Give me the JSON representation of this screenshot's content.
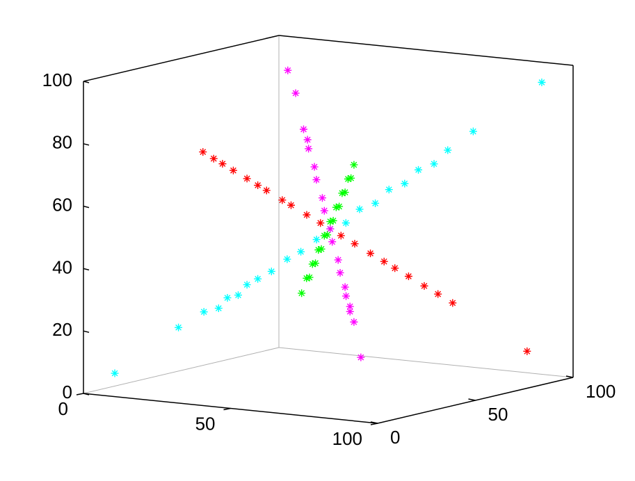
{
  "chart_data": {
    "type": "scatter3d",
    "xlim": [
      0,
      100
    ],
    "ylim": [
      0,
      100
    ],
    "zlim": [
      0,
      100
    ],
    "xticks": [
      0,
      50,
      100
    ],
    "yticks": [
      0,
      50,
      100
    ],
    "zticks": [
      0,
      20,
      40,
      60,
      80,
      100
    ],
    "series": [
      {
        "color": "#ff0000",
        "x": [
          24,
          27,
          28,
          31,
          33,
          36,
          37,
          41,
          42,
          46,
          48,
          53,
          55,
          59,
          61,
          64,
          66,
          70,
          72,
          75,
          91
        ],
        "y": [
          25,
          26,
          29,
          30,
          34,
          35,
          38,
          40,
          43,
          45,
          49,
          52,
          56,
          58,
          62,
          63,
          67,
          69,
          73,
          76,
          90
        ],
        "z": [
          76,
          74,
          72,
          70,
          67,
          65,
          63,
          60,
          58,
          55,
          52,
          48,
          45,
          42,
          39,
          37,
          34,
          31,
          28,
          25,
          9
        ]
      },
      {
        "color": "#00ffff",
        "x": [
          6,
          19,
          25,
          28,
          29,
          32,
          33,
          36,
          38,
          42,
          44,
          48,
          50,
          54,
          56,
          60,
          62,
          66,
          68,
          72,
          74,
          80,
          94
        ],
        "y": [
          7,
          20,
          24,
          27,
          30,
          31,
          34,
          35,
          39,
          41,
          45,
          47,
          51,
          53,
          57,
          59,
          63,
          65,
          69,
          71,
          75,
          79,
          93
        ],
        "z": [
          6,
          20,
          25,
          26,
          29,
          30,
          33,
          35,
          37,
          41,
          43,
          47,
          50,
          52,
          56,
          58,
          62,
          64,
          68,
          70,
          74,
          80,
          95
        ]
      },
      {
        "color": "#ff00ff",
        "x": [
          83,
          74,
          72,
          70,
          68,
          65,
          62,
          58,
          54,
          50,
          46,
          42,
          38,
          34,
          30,
          27,
          25,
          15,
          9
        ],
        "y": [
          17,
          27,
          28,
          31,
          32,
          36,
          38,
          43,
          46,
          51,
          54,
          59,
          62,
          67,
          70,
          74,
          75,
          86,
          91
        ],
        "z": [
          17,
          26,
          29,
          30,
          33,
          35,
          39,
          42,
          47,
          50,
          55,
          58,
          63,
          66,
          71,
          73,
          76,
          85,
          91
        ]
      },
      {
        "color": "#00ff00",
        "x": [
          23,
          28,
          31,
          34,
          37,
          40,
          43,
          46,
          49,
          52,
          55,
          58,
          61,
          64,
          67,
          70,
          73,
          76
        ],
        "y": [
          77,
          72,
          69,
          66,
          63,
          60,
          57,
          54,
          51,
          48,
          45,
          42,
          39,
          36,
          33,
          30,
          27,
          24
        ],
        "z": [
          23,
          29,
          30,
          35,
          36,
          41,
          42,
          47,
          48,
          53,
          54,
          59,
          60,
          65,
          66,
          71,
          72,
          77
        ]
      }
    ]
  }
}
